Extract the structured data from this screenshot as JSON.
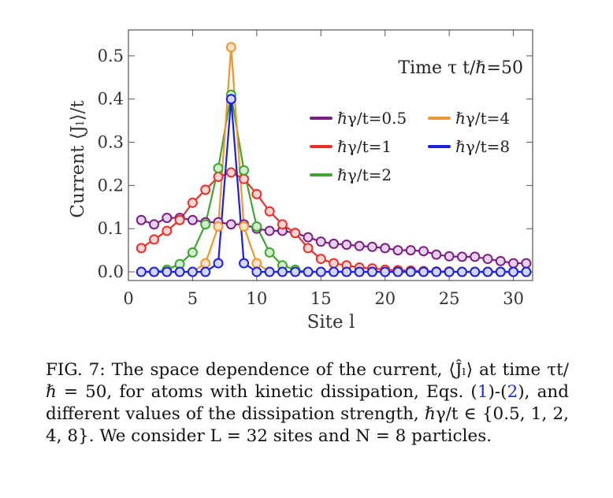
{
  "chart_data": {
    "type": "line",
    "title": "",
    "xlabel": "Site l",
    "ylabel": "Current ⟨Jₗ⟩/t",
    "xlim": [
      0,
      31.5
    ],
    "ylim": [
      -0.02,
      0.56
    ],
    "xticks": [
      0,
      5,
      10,
      15,
      20,
      25,
      30
    ],
    "yticks": [
      0.0,
      0.1,
      0.2,
      0.3,
      0.4,
      0.5
    ],
    "ytick_labels": [
      "0.0",
      "0.1",
      "0.2",
      "0.3",
      "0.4",
      "0.5"
    ],
    "annotation": "Time τ t/ℏ=50",
    "legend_position": "right",
    "x": [
      1,
      2,
      3,
      4,
      5,
      6,
      7,
      8,
      9,
      10,
      11,
      12,
      13,
      14,
      15,
      16,
      17,
      18,
      19,
      20,
      21,
      22,
      23,
      24,
      25,
      26,
      27,
      28,
      29,
      30,
      31
    ],
    "series": [
      {
        "name": "ℏγ/t=0.5",
        "color": "#7b1f86",
        "fill": "#e6d3ea",
        "values": [
          0.12,
          0.11,
          0.125,
          0.125,
          0.12,
          0.115,
          0.115,
          0.11,
          0.11,
          0.1,
          0.095,
          0.095,
          0.09,
          0.08,
          0.07,
          0.065,
          0.063,
          0.06,
          0.058,
          0.055,
          0.05,
          0.05,
          0.048,
          0.04,
          0.036,
          0.035,
          0.035,
          0.03,
          0.025,
          0.02,
          0.02
        ]
      },
      {
        "name": "ℏγ/t=1",
        "color": "#e8302a",
        "fill": "#f8d5d2",
        "values": [
          0.055,
          0.075,
          0.095,
          0.12,
          0.16,
          0.19,
          0.22,
          0.23,
          0.215,
          0.18,
          0.14,
          0.11,
          0.09,
          0.055,
          0.03,
          0.02,
          0.015,
          0.01,
          0.008,
          0.005,
          0.004,
          0.003,
          0.002,
          0.001,
          0.001,
          0.0,
          0.0,
          0.0,
          0.0,
          0.0,
          0.0
        ]
      },
      {
        "name": "ℏγ/t=2",
        "color": "#3ea52f",
        "fill": "#d4edcf",
        "values": [
          0.0,
          0.0,
          0.005,
          0.018,
          0.045,
          0.11,
          0.24,
          0.41,
          0.235,
          0.105,
          0.045,
          0.015,
          0.005,
          0.0,
          0.0,
          0.0,
          0.0,
          0.0,
          0.0,
          0.0,
          0.0,
          0.0,
          0.0,
          0.0,
          0.0,
          0.0,
          0.0,
          0.0,
          0.0,
          0.0,
          0.0
        ]
      },
      {
        "name": "ℏγ/t=4",
        "color": "#f0962d",
        "fill": "#fbe3c8",
        "values": [
          0.0,
          0.0,
          0.0,
          0.0,
          0.0,
          0.02,
          0.105,
          0.52,
          0.105,
          0.02,
          0.0,
          0.0,
          0.0,
          0.0,
          0.0,
          0.0,
          0.0,
          0.0,
          0.0,
          0.0,
          0.0,
          0.0,
          0.0,
          0.0,
          0.0,
          0.0,
          0.0,
          0.0,
          0.0,
          0.0,
          0.0
        ]
      },
      {
        "name": "ℏγ/t=8",
        "color": "#1a1fe0",
        "fill": "#d4d6fa",
        "values": [
          0.0,
          0.0,
          0.0,
          0.0,
          0.0,
          0.0,
          0.02,
          0.4,
          0.02,
          0.0,
          0.0,
          0.0,
          0.0,
          0.0,
          0.0,
          0.0,
          0.0,
          0.0,
          0.0,
          0.0,
          0.0,
          0.0,
          0.0,
          0.0,
          0.0,
          0.0,
          0.0,
          0.0,
          0.0,
          0.0,
          0.0
        ]
      }
    ]
  },
  "caption": {
    "part1": "FIG. 7: The space dependence of the current, ⟨Ĵₗ⟩ at time τt/ℏ = 50, for atoms with kinetic dissipation, Eqs. (",
    "ref1": "1",
    "part2": ")-(",
    "ref2": "2",
    "part3": "), and different values of the dissipation strength, ℏγ/t ∈ {0.5, 1, 2, 4, 8}. We consider L = 32 sites and N = 8 particles."
  }
}
